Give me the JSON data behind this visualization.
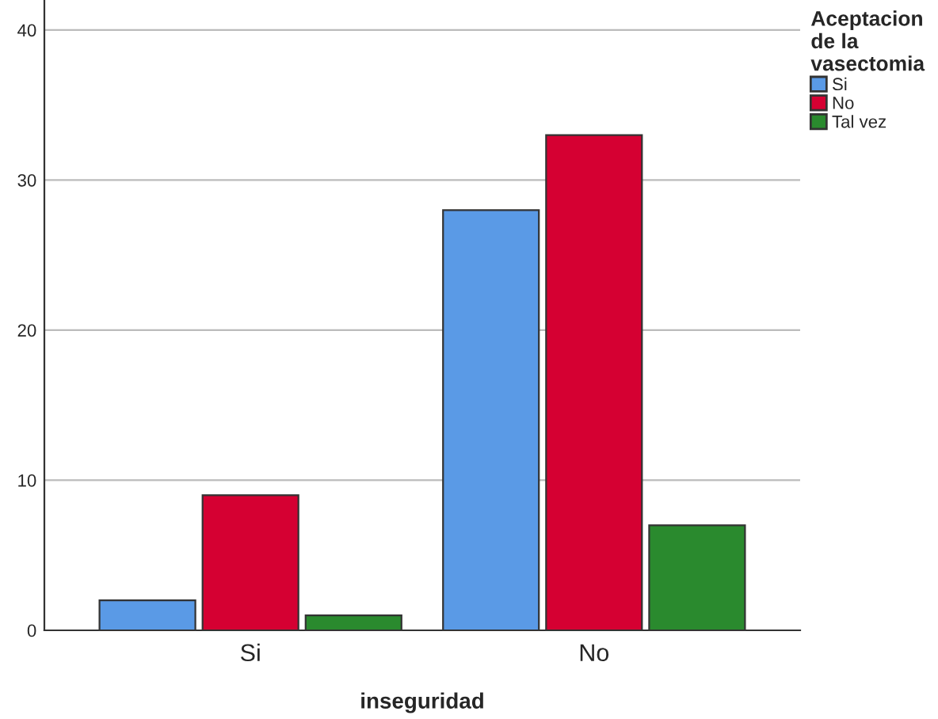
{
  "chart_data": {
    "type": "bar",
    "xlabel": "inseguridad",
    "legend_title": "Aceptacion\nde la\nvasectomia",
    "categories": [
      "Si",
      "No"
    ],
    "series": [
      {
        "name": "Si",
        "color": "#5a9ae6",
        "values": [
          2,
          28
        ]
      },
      {
        "name": "No",
        "color": "#d50032",
        "values": [
          9,
          33
        ]
      },
      {
        "name": "Tal vez",
        "color": "#2a8a2e",
        "values": [
          1,
          7
        ]
      }
    ],
    "ylim": [
      0,
      42
    ],
    "yticks": [
      0,
      10,
      20,
      30,
      40
    ],
    "grid": "y",
    "legend": "top right"
  }
}
